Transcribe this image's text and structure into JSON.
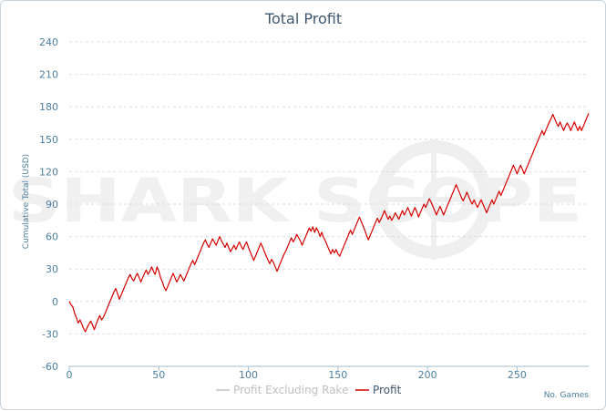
{
  "chart_data": {
    "type": "line",
    "title": "Total Profit",
    "xlabel": "No. Games",
    "ylabel": "Cumulative Total (USD)",
    "xlim": [
      0,
      290
    ],
    "ylim": [
      -60,
      240
    ],
    "x_ticks": [
      "0",
      "50",
      "100",
      "150",
      "200",
      "250"
    ],
    "y_ticks": [
      "240",
      "210",
      "180",
      "150",
      "120",
      "90",
      "60",
      "30",
      "0",
      "-30",
      "-60"
    ],
    "grid": true,
    "legend_position": "bottom-center",
    "watermark": "SHARK SCOPE",
    "series": [
      {
        "name": "Profit Excluding Rake",
        "color": "#c0c0c0",
        "visible": false,
        "points": []
      },
      {
        "name": "Profit",
        "color": "#d40000",
        "visible": true,
        "points": [
          [
            0,
            0
          ],
          [
            1,
            -3
          ],
          [
            2,
            -5
          ],
          [
            3,
            -11
          ],
          [
            4,
            -15
          ],
          [
            5,
            -20
          ],
          [
            6,
            -17
          ],
          [
            7,
            -21
          ],
          [
            8,
            -25
          ],
          [
            9,
            -28
          ],
          [
            10,
            -24
          ],
          [
            11,
            -21
          ],
          [
            12,
            -18
          ],
          [
            13,
            -22
          ],
          [
            14,
            -26
          ],
          [
            15,
            -21
          ],
          [
            16,
            -17
          ],
          [
            17,
            -13
          ],
          [
            18,
            -17
          ],
          [
            19,
            -15
          ],
          [
            20,
            -11
          ],
          [
            21,
            -7
          ],
          [
            22,
            -3
          ],
          [
            23,
            1
          ],
          [
            24,
            5
          ],
          [
            25,
            9
          ],
          [
            26,
            12
          ],
          [
            27,
            7
          ],
          [
            28,
            2
          ],
          [
            29,
            6
          ],
          [
            30,
            10
          ],
          [
            31,
            14
          ],
          [
            32,
            18
          ],
          [
            33,
            22
          ],
          [
            34,
            25
          ],
          [
            35,
            21
          ],
          [
            36,
            19
          ],
          [
            37,
            23
          ],
          [
            38,
            26
          ],
          [
            39,
            22
          ],
          [
            40,
            18
          ],
          [
            41,
            22
          ],
          [
            42,
            26
          ],
          [
            43,
            29
          ],
          [
            44,
            25
          ],
          [
            45,
            28
          ],
          [
            46,
            32
          ],
          [
            47,
            28
          ],
          [
            48,
            25
          ],
          [
            49,
            32
          ],
          [
            50,
            28
          ],
          [
            51,
            22
          ],
          [
            52,
            18
          ],
          [
            53,
            13
          ],
          [
            54,
            10
          ],
          [
            55,
            14
          ],
          [
            56,
            18
          ],
          [
            57,
            22
          ],
          [
            58,
            26
          ],
          [
            59,
            22
          ],
          [
            60,
            18
          ],
          [
            61,
            21
          ],
          [
            62,
            25
          ],
          [
            63,
            22
          ],
          [
            64,
            19
          ],
          [
            65,
            23
          ],
          [
            66,
            27
          ],
          [
            67,
            31
          ],
          [
            68,
            35
          ],
          [
            69,
            38
          ],
          [
            70,
            34
          ],
          [
            71,
            38
          ],
          [
            72,
            42
          ],
          [
            73,
            46
          ],
          [
            74,
            50
          ],
          [
            75,
            54
          ],
          [
            76,
            57
          ],
          [
            77,
            53
          ],
          [
            78,
            50
          ],
          [
            79,
            54
          ],
          [
            80,
            58
          ],
          [
            81,
            55
          ],
          [
            82,
            52
          ],
          [
            83,
            56
          ],
          [
            84,
            60
          ],
          [
            85,
            56
          ],
          [
            86,
            53
          ],
          [
            87,
            50
          ],
          [
            88,
            54
          ],
          [
            89,
            50
          ],
          [
            90,
            46
          ],
          [
            91,
            49
          ],
          [
            92,
            52
          ],
          [
            93,
            48
          ],
          [
            94,
            52
          ],
          [
            95,
            55
          ],
          [
            96,
            51
          ],
          [
            97,
            48
          ],
          [
            98,
            52
          ],
          [
            99,
            55
          ],
          [
            100,
            50
          ],
          [
            101,
            46
          ],
          [
            102,
            42
          ],
          [
            103,
            38
          ],
          [
            104,
            42
          ],
          [
            105,
            46
          ],
          [
            106,
            50
          ],
          [
            107,
            54
          ],
          [
            108,
            50
          ],
          [
            109,
            46
          ],
          [
            110,
            42
          ],
          [
            111,
            38
          ],
          [
            112,
            35
          ],
          [
            113,
            39
          ],
          [
            114,
            36
          ],
          [
            115,
            32
          ],
          [
            116,
            28
          ],
          [
            117,
            32
          ],
          [
            118,
            36
          ],
          [
            119,
            40
          ],
          [
            120,
            44
          ],
          [
            121,
            47
          ],
          [
            122,
            51
          ],
          [
            123,
            55
          ],
          [
            124,
            59
          ],
          [
            125,
            55
          ],
          [
            126,
            58
          ],
          [
            127,
            62
          ],
          [
            128,
            59
          ],
          [
            129,
            56
          ],
          [
            130,
            52
          ],
          [
            131,
            56
          ],
          [
            132,
            60
          ],
          [
            133,
            64
          ],
          [
            134,
            68
          ],
          [
            135,
            65
          ],
          [
            136,
            69
          ],
          [
            137,
            64
          ],
          [
            138,
            68
          ],
          [
            139,
            65
          ],
          [
            140,
            60
          ],
          [
            141,
            64
          ],
          [
            142,
            59
          ],
          [
            143,
            56
          ],
          [
            144,
            52
          ],
          [
            145,
            48
          ],
          [
            146,
            44
          ],
          [
            147,
            48
          ],
          [
            148,
            45
          ],
          [
            149,
            48
          ],
          [
            150,
            44
          ],
          [
            151,
            42
          ],
          [
            152,
            46
          ],
          [
            153,
            50
          ],
          [
            154,
            54
          ],
          [
            155,
            58
          ],
          [
            156,
            62
          ],
          [
            157,
            66
          ],
          [
            158,
            62
          ],
          [
            159,
            66
          ],
          [
            160,
            70
          ],
          [
            161,
            74
          ],
          [
            162,
            78
          ],
          [
            163,
            74
          ],
          [
            164,
            70
          ],
          [
            165,
            66
          ],
          [
            166,
            61
          ],
          [
            167,
            57
          ],
          [
            168,
            61
          ],
          [
            169,
            65
          ],
          [
            170,
            69
          ],
          [
            171,
            73
          ],
          [
            172,
            77
          ],
          [
            173,
            73
          ],
          [
            174,
            76
          ],
          [
            175,
            80
          ],
          [
            176,
            84
          ],
          [
            177,
            80
          ],
          [
            178,
            76
          ],
          [
            179,
            79
          ],
          [
            180,
            75
          ],
          [
            181,
            78
          ],
          [
            182,
            82
          ],
          [
            183,
            79
          ],
          [
            184,
            76
          ],
          [
            185,
            80
          ],
          [
            186,
            84
          ],
          [
            187,
            80
          ],
          [
            188,
            83
          ],
          [
            189,
            87
          ],
          [
            190,
            83
          ],
          [
            191,
            79
          ],
          [
            192,
            83
          ],
          [
            193,
            87
          ],
          [
            194,
            83
          ],
          [
            195,
            78
          ],
          [
            196,
            82
          ],
          [
            197,
            86
          ],
          [
            198,
            90
          ],
          [
            199,
            87
          ],
          [
            200,
            91
          ],
          [
            201,
            95
          ],
          [
            202,
            92
          ],
          [
            203,
            88
          ],
          [
            204,
            84
          ],
          [
            205,
            80
          ],
          [
            206,
            84
          ],
          [
            207,
            88
          ],
          [
            208,
            84
          ],
          [
            209,
            80
          ],
          [
            210,
            84
          ],
          [
            211,
            88
          ],
          [
            212,
            92
          ],
          [
            213,
            96
          ],
          [
            214,
            100
          ],
          [
            215,
            104
          ],
          [
            216,
            108
          ],
          [
            217,
            104
          ],
          [
            218,
            100
          ],
          [
            219,
            96
          ],
          [
            220,
            93
          ],
          [
            221,
            97
          ],
          [
            222,
            101
          ],
          [
            223,
            97
          ],
          [
            224,
            93
          ],
          [
            225,
            90
          ],
          [
            226,
            94
          ],
          [
            227,
            90
          ],
          [
            228,
            87
          ],
          [
            229,
            91
          ],
          [
            230,
            94
          ],
          [
            231,
            90
          ],
          [
            232,
            86
          ],
          [
            233,
            82
          ],
          [
            234,
            86
          ],
          [
            235,
            90
          ],
          [
            236,
            94
          ],
          [
            237,
            90
          ],
          [
            238,
            94
          ],
          [
            239,
            98
          ],
          [
            240,
            102
          ],
          [
            241,
            98
          ],
          [
            242,
            102
          ],
          [
            243,
            106
          ],
          [
            244,
            110
          ],
          [
            245,
            114
          ],
          [
            246,
            118
          ],
          [
            247,
            122
          ],
          [
            248,
            126
          ],
          [
            249,
            122
          ],
          [
            250,
            118
          ],
          [
            251,
            122
          ],
          [
            252,
            126
          ],
          [
            253,
            122
          ],
          [
            254,
            118
          ],
          [
            255,
            122
          ],
          [
            256,
            126
          ],
          [
            257,
            130
          ],
          [
            258,
            134
          ],
          [
            259,
            138
          ],
          [
            260,
            142
          ],
          [
            261,
            146
          ],
          [
            262,
            150
          ],
          [
            263,
            154
          ],
          [
            264,
            158
          ],
          [
            265,
            154
          ],
          [
            266,
            158
          ],
          [
            267,
            162
          ],
          [
            268,
            166
          ],
          [
            269,
            169
          ],
          [
            270,
            173
          ],
          [
            271,
            169
          ],
          [
            272,
            165
          ],
          [
            273,
            162
          ],
          [
            274,
            166
          ],
          [
            275,
            162
          ],
          [
            276,
            158
          ],
          [
            277,
            162
          ],
          [
            278,
            165
          ],
          [
            279,
            162
          ],
          [
            280,
            158
          ],
          [
            281,
            162
          ],
          [
            282,
            166
          ],
          [
            283,
            162
          ],
          [
            284,
            158
          ],
          [
            285,
            162
          ],
          [
            286,
            158
          ],
          [
            287,
            162
          ],
          [
            288,
            166
          ],
          [
            289,
            170
          ],
          [
            290,
            174
          ]
        ]
      }
    ]
  }
}
